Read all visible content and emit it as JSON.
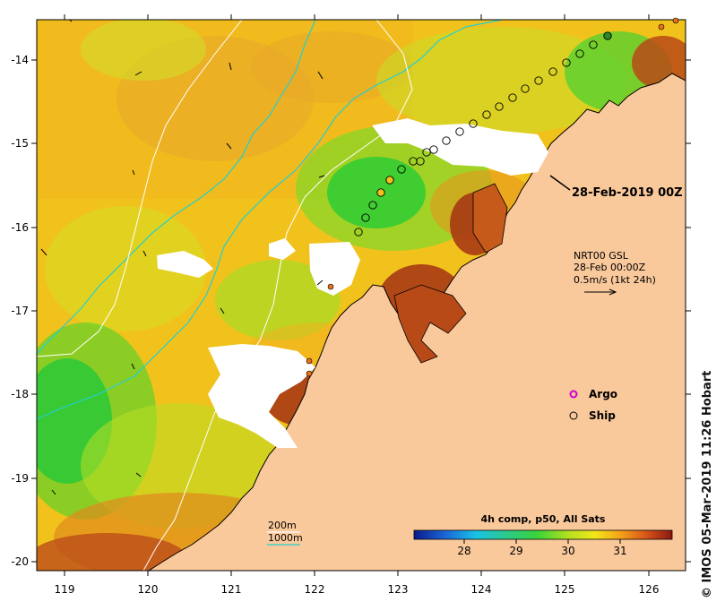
{
  "map": {
    "x_ticks": [
      "119",
      "120",
      "121",
      "122",
      "123",
      "124",
      "125",
      "126"
    ],
    "y_ticks": [
      "-14",
      "-15",
      "-16",
      "-17",
      "-18",
      "-19",
      "-20"
    ],
    "track_label": "28-Feb-2019 00Z",
    "current_info": {
      "line1": "NRT00 GSL",
      "line2": "28-Feb 00:00Z",
      "line3": "0.5m/s (1kt 24h)"
    },
    "legend": {
      "argo": "Argo",
      "ship": "Ship",
      "depth_200": "200m",
      "depth_1000": "1000m"
    },
    "colorbar": {
      "title": "4h comp, p50, All Sats",
      "ticks": [
        "28",
        "29",
        "30",
        "31"
      ]
    },
    "credit": "© IMOS 05-Mar-2019 11:26 Hobart",
    "colors": {
      "land": "#f9c89b",
      "coast": "#000000",
      "isobath_200": "#ffffff",
      "isobath_1000": "#20d0d0",
      "argo": "#d000d0"
    }
  }
}
